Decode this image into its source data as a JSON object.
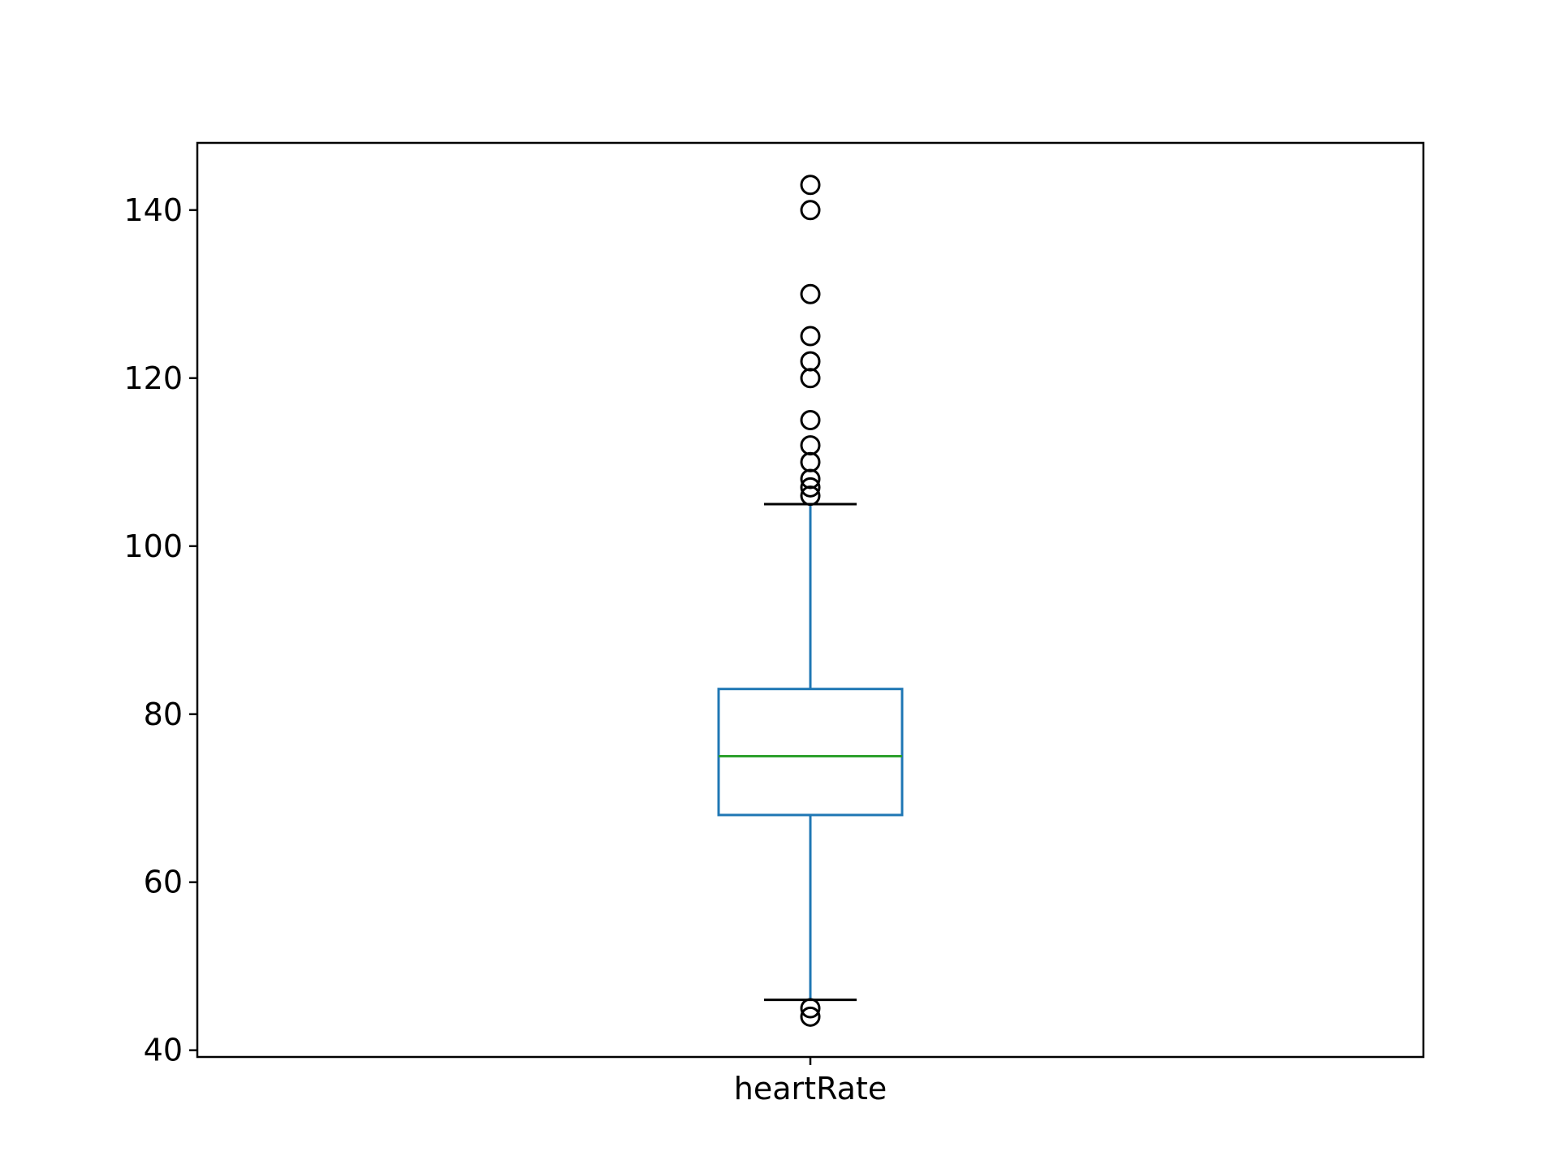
{
  "chart_data": {
    "type": "box",
    "categories": [
      "heartRate"
    ],
    "series": [
      {
        "category": "heartRate",
        "whisker_low": 46,
        "q1": 68,
        "median": 75,
        "q3": 83,
        "whisker_high": 105,
        "outliers": [
          143,
          140,
          130,
          125,
          122,
          120,
          115,
          112,
          110,
          108,
          107,
          106,
          45,
          44
        ]
      }
    ],
    "title": "",
    "xlabel": "",
    "ylabel": "",
    "ylim": [
      39.2,
      148
    ],
    "yticks": [
      40,
      60,
      80,
      100,
      120,
      140
    ],
    "grid": false,
    "colors": {
      "box": "#1f77b4",
      "median": "#2ca02c",
      "whisker": "#1f77b4",
      "cap": "#000000",
      "flier": "#000000",
      "axes": "#000000"
    }
  }
}
